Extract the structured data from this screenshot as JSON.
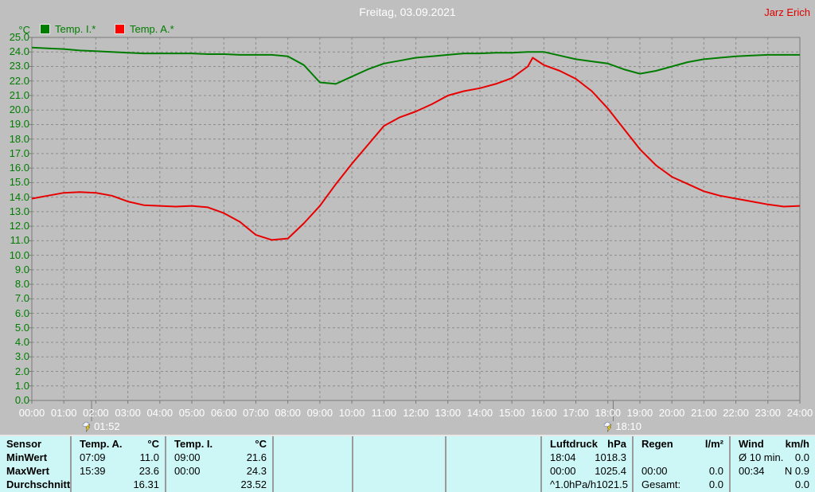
{
  "header": {
    "title": "Freitag, 03.09.2021",
    "user": "Jarz Erich"
  },
  "legend": {
    "items": [
      {
        "label": "Temp. I.*",
        "color": "#007d00"
      },
      {
        "label": "Temp. A.*",
        "color": "#ff0000"
      }
    ]
  },
  "colors": {
    "background": "#bfbfbf",
    "grid": "#8c8c8c",
    "axis": "#7a7a7a",
    "white_text": "#ffffff",
    "green_text": "#007d00",
    "user_red": "#e00000",
    "table_bg": "#cdf6f6",
    "table_separator": "#9a9a9a"
  },
  "chart_data": {
    "type": "line",
    "title": "Freitag, 03.09.2021",
    "xlabel": "",
    "ylabel": "°C",
    "ylim": [
      0,
      25
    ],
    "xlim_hours": [
      0,
      24
    ],
    "grid": true,
    "legend_position": "top-left",
    "y_ticks": [
      "25.0",
      "24.0",
      "23.0",
      "22.0",
      "21.0",
      "20.0",
      "19.0",
      "18.0",
      "17.0",
      "16.0",
      "15.0",
      "14.0",
      "13.0",
      "12.0",
      "11.0",
      "10.0",
      "9.0",
      "8.0",
      "7.0",
      "6.0",
      "5.0",
      "4.0",
      "3.0",
      "2.0",
      "1.0",
      "0.0"
    ],
    "x_ticks": [
      "00:00",
      "01:00",
      "02:00",
      "03:00",
      "04:00",
      "05:00",
      "06:00",
      "07:00",
      "08:00",
      "09:00",
      "10:00",
      "11:00",
      "12:00",
      "13:00",
      "14:00",
      "15:00",
      "16:00",
      "17:00",
      "18:00",
      "19:00",
      "20:00",
      "21:00",
      "22:00",
      "23:00",
      "24:00"
    ],
    "x_hours": [
      0,
      0.5,
      1,
      1.5,
      2,
      2.5,
      3,
      3.5,
      4,
      4.5,
      5,
      5.5,
      6,
      6.5,
      7,
      7.5,
      8,
      8.5,
      9,
      9.5,
      10,
      10.5,
      11,
      11.5,
      12,
      12.5,
      13,
      13.5,
      14,
      14.5,
      15,
      15.5,
      15.65,
      16,
      16.5,
      17,
      17.5,
      18,
      18.5,
      19,
      19.5,
      20,
      20.5,
      21,
      21.5,
      22,
      22.5,
      23,
      23.5,
      24
    ],
    "series": [
      {
        "name": "Temp. I.*",
        "color": "#007d00",
        "values": [
          24.3,
          24.25,
          24.2,
          24.1,
          24.05,
          24.0,
          23.95,
          23.9,
          23.9,
          23.9,
          23.9,
          23.85,
          23.85,
          23.8,
          23.8,
          23.8,
          23.7,
          23.1,
          21.9,
          21.8,
          22.3,
          22.8,
          23.2,
          23.4,
          23.6,
          23.7,
          23.8,
          23.9,
          23.9,
          23.95,
          23.95,
          24.0,
          24.0,
          24.0,
          23.75,
          23.5,
          23.35,
          23.2,
          22.8,
          22.5,
          22.7,
          23.0,
          23.3,
          23.5,
          23.6,
          23.7,
          23.75,
          23.8,
          23.8,
          23.8
        ]
      },
      {
        "name": "Temp. A.*",
        "color": "#e80000",
        "values": [
          13.9,
          14.1,
          14.3,
          14.35,
          14.3,
          14.1,
          13.7,
          13.45,
          13.4,
          13.35,
          13.4,
          13.3,
          12.9,
          12.3,
          11.4,
          11.05,
          11.15,
          12.2,
          13.4,
          14.9,
          16.3,
          17.6,
          18.9,
          19.5,
          19.9,
          20.4,
          21.0,
          21.3,
          21.5,
          21.8,
          22.2,
          23.0,
          23.6,
          23.1,
          22.7,
          22.15,
          21.3,
          20.1,
          18.7,
          17.3,
          16.2,
          15.4,
          14.9,
          14.4,
          14.1,
          13.9,
          13.7,
          13.5,
          13.35,
          13.4
        ]
      }
    ],
    "markers": [
      {
        "label": "01:52",
        "hour": 1.867
      },
      {
        "label": "18:10",
        "hour": 18.167
      }
    ]
  },
  "table": {
    "row_labels": [
      "Sensor",
      "MinWert",
      "MaxWert",
      "Durchschnitt"
    ],
    "blocks": [
      {
        "name": "temp-a",
        "header": {
          "label": "Temp. A.",
          "unit": "°C"
        },
        "rows": [
          {
            "time": "07:09",
            "value": "11.0"
          },
          {
            "time": "15:39",
            "value": "23.6"
          },
          {
            "time": "",
            "value": "16.31"
          }
        ]
      },
      {
        "name": "temp-i",
        "header": {
          "label": "Temp. I.",
          "unit": "°C"
        },
        "rows": [
          {
            "time": "09:00",
            "value": "21.6"
          },
          {
            "time": "00:00",
            "value": "24.3"
          },
          {
            "time": "",
            "value": "23.52"
          }
        ]
      },
      {
        "name": "empty-1",
        "header": {
          "label": "",
          "unit": ""
        },
        "rows": [
          {
            "time": "",
            "value": ""
          },
          {
            "time": "",
            "value": ""
          },
          {
            "time": "",
            "value": ""
          }
        ]
      },
      {
        "name": "empty-2",
        "header": {
          "label": "",
          "unit": ""
        },
        "rows": [
          {
            "time": "",
            "value": ""
          },
          {
            "time": "",
            "value": ""
          },
          {
            "time": "",
            "value": ""
          }
        ]
      },
      {
        "name": "empty-3",
        "header": {
          "label": "",
          "unit": ""
        },
        "rows": [
          {
            "time": "",
            "value": ""
          },
          {
            "time": "",
            "value": ""
          },
          {
            "time": "",
            "value": ""
          }
        ]
      },
      {
        "name": "luftdruck",
        "header": {
          "label": "Luftdruck",
          "unit": "hPa"
        },
        "rows": [
          {
            "time": "18:04",
            "value": "1018.3"
          },
          {
            "time": "00:00",
            "value": "1025.4"
          },
          {
            "time": "^1.0hPa/h",
            "value": "1021.5"
          }
        ]
      },
      {
        "name": "regen",
        "header": {
          "label": "Regen",
          "unit": "l/m²"
        },
        "rows": [
          {
            "time": "",
            "value": ""
          },
          {
            "time": "00:00",
            "value": "0.0"
          },
          {
            "time": "Gesamt:",
            "value": "0.0"
          }
        ]
      },
      {
        "name": "wind",
        "header": {
          "label": "Wind",
          "unit": "km/h"
        },
        "rows": [
          {
            "time": "Ø 10 min.",
            "value": "0.0"
          },
          {
            "time": "00:34",
            "value": "N 0.9"
          },
          {
            "time": "",
            "value": "0.0"
          }
        ]
      }
    ]
  }
}
